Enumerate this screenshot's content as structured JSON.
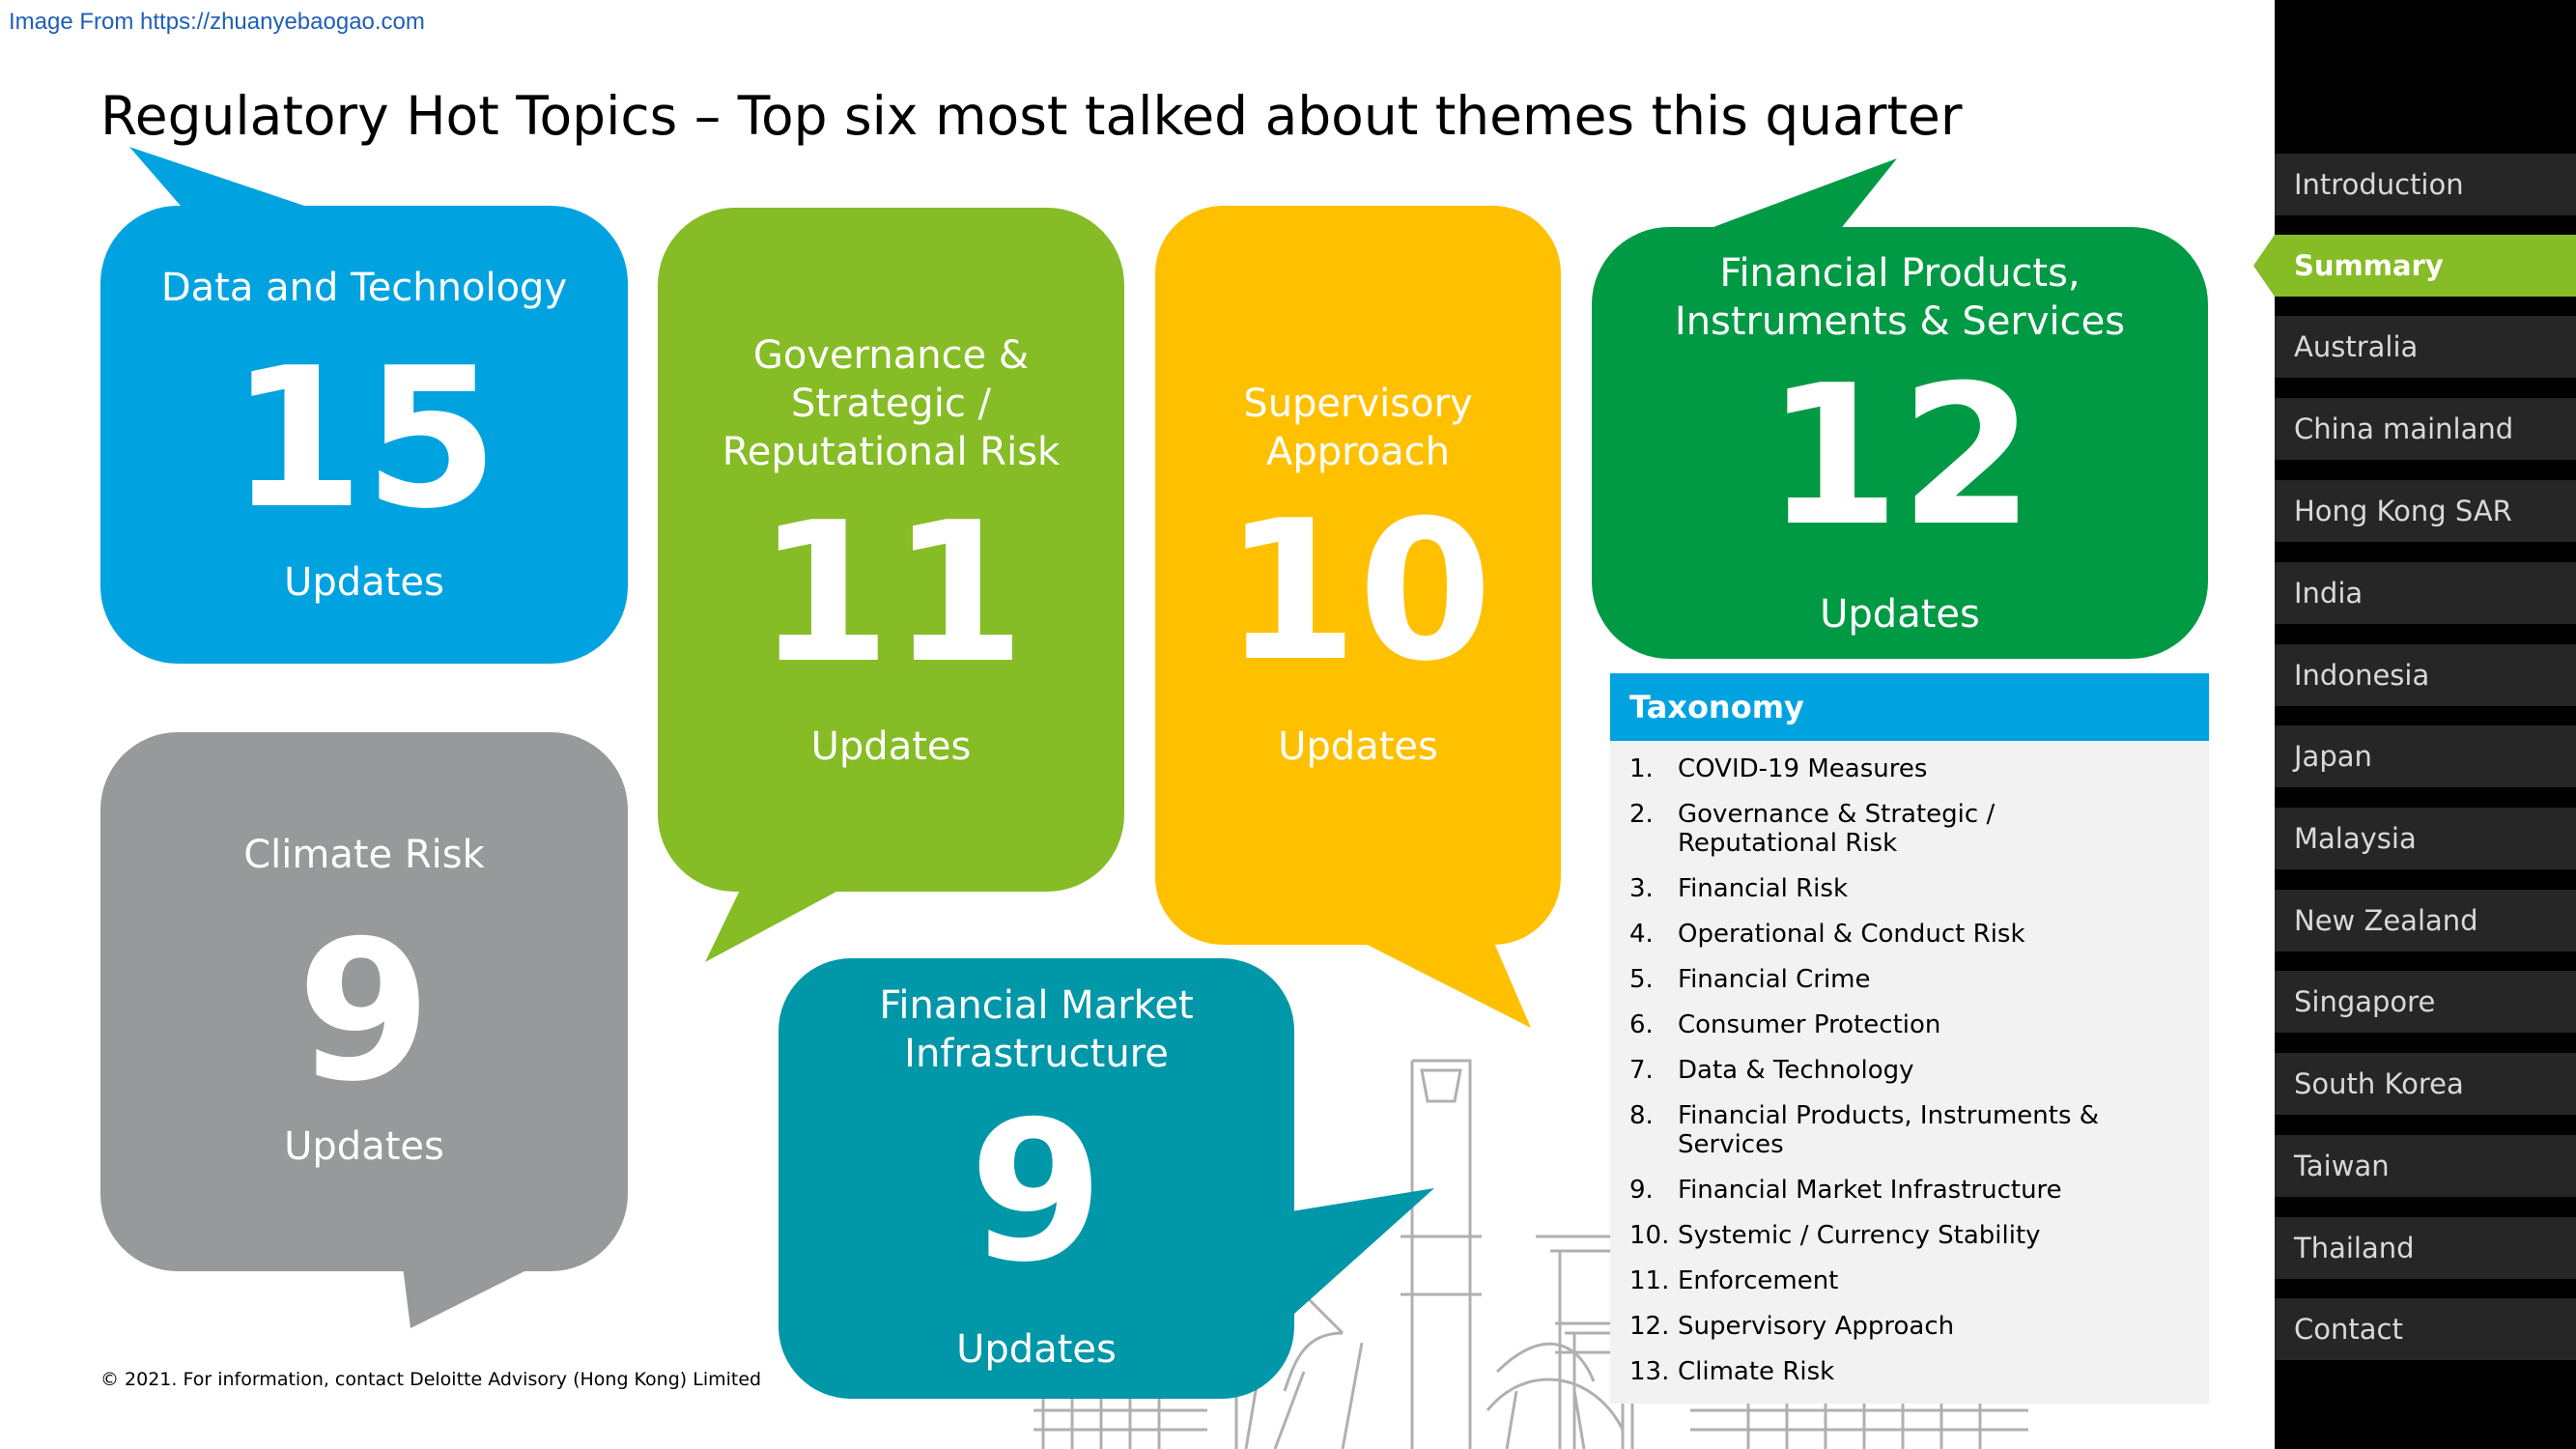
{
  "source_text": "Image From https://zhuanyebaogao.com",
  "title": "Regulatory Hot Topics – Top six most talked about themes this quarter",
  "colors": {
    "data_technology": "#00a3e0",
    "governance": "#86bc25",
    "supervisory": "#ffc000",
    "financial_products": "#009a44",
    "climate": "#97999b",
    "market_infrastructure": "#0097a9",
    "nav_active": "#86bc25",
    "nav_bg": "#262626"
  },
  "topics": [
    {
      "name": "Data and Technology",
      "count": "15",
      "label": "Updates"
    },
    {
      "name": "Governance & Strategic / Reputational Risk",
      "count": "11",
      "label": "Updates"
    },
    {
      "name": "Supervisory Approach",
      "count": "10",
      "label": "Updates"
    },
    {
      "name": "Financial Products, Instruments & Services",
      "count": "12",
      "label": "Updates"
    },
    {
      "name": "Climate Risk",
      "count": "9",
      "label": "Updates"
    },
    {
      "name": "Financial Market Infrastructure",
      "count": "9",
      "label": "Updates"
    }
  ],
  "taxonomy": {
    "heading": "Taxonomy",
    "items": [
      {
        "n": "1.",
        "t": "COVID-19 Measures"
      },
      {
        "n": "2.",
        "t": "Governance & Strategic / Reputational Risk"
      },
      {
        "n": "3.",
        "t": "Financial Risk"
      },
      {
        "n": "4.",
        "t": "Operational & Conduct Risk"
      },
      {
        "n": "5.",
        "t": "Financial Crime"
      },
      {
        "n": "6.",
        "t": "Consumer Protection"
      },
      {
        "n": "7.",
        "t": "Data & Technology"
      },
      {
        "n": "8.",
        "t": "Financial Products, Instruments & Services"
      },
      {
        "n": "9.",
        "t": "Financial Market Infrastructure"
      },
      {
        "n": "10.",
        "t": "Systemic / Currency Stability"
      },
      {
        "n": "11.",
        "t": "Enforcement"
      },
      {
        "n": "12.",
        "t": "Supervisory Approach"
      },
      {
        "n": "13.",
        "t": "Climate Risk"
      }
    ]
  },
  "nav": {
    "active_index": 1,
    "items": [
      "Introduction",
      "Summary",
      "Australia",
      "China mainland",
      "Hong Kong SAR",
      "India",
      "Indonesia",
      "Japan",
      "Malaysia",
      "New Zealand",
      "Singapore",
      "South Korea",
      "Taiwan",
      "Thailand",
      "Contact"
    ]
  },
  "footer": "© 2021. For information, contact Deloitte Advisory (Hong Kong) Limited"
}
